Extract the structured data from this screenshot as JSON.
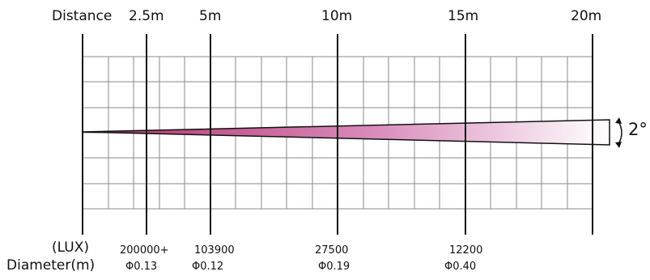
{
  "header": {
    "distance_label": "Distance",
    "distances": [
      "2.5m",
      "5m",
      "10m",
      "15m",
      "20m"
    ]
  },
  "beam": {
    "angle_label": "2°",
    "color_start": "#b0306a",
    "color_end": "#ffffff"
  },
  "footer": {
    "lux_label": "(LUX)",
    "diameter_label": "Diameter(m)",
    "lux_values": [
      "200000+",
      "103900",
      "27500",
      "12200"
    ],
    "diameters": [
      "Φ0.13",
      "Φ0.12",
      "Φ0.19",
      "Φ0.40"
    ]
  },
  "grid": {
    "line_color": "#8a8a8a",
    "marker_color": "#111111"
  }
}
